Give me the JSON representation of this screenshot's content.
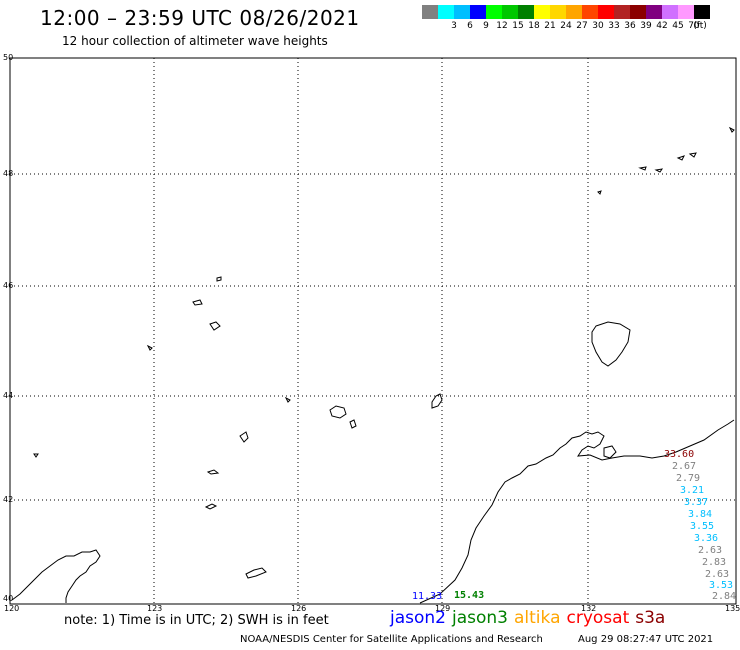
{
  "header": {
    "title": "12:00 – 23:59 UTC 08/26/2021",
    "subtitle": "12 hour collection of altimeter wave heights"
  },
  "legend": {
    "unit": "(ft)",
    "bins": [
      {
        "label": "",
        "color": "#808080"
      },
      {
        "label": "3",
        "color": "#00ffff"
      },
      {
        "label": "6",
        "color": "#00bfff"
      },
      {
        "label": "9",
        "color": "#0000ff"
      },
      {
        "label": "12",
        "color": "#00ff00"
      },
      {
        "label": "15",
        "color": "#00c800"
      },
      {
        "label": "18",
        "color": "#008000"
      },
      {
        "label": "21",
        "color": "#ffff00"
      },
      {
        "label": "24",
        "color": "#ffd700"
      },
      {
        "label": "27",
        "color": "#ffa500"
      },
      {
        "label": "30",
        "color": "#ff4500"
      },
      {
        "label": "33",
        "color": "#ff0000"
      },
      {
        "label": "36",
        "color": "#b22222"
      },
      {
        "label": "39",
        "color": "#8b0000"
      },
      {
        "label": "42",
        "color": "#800080"
      },
      {
        "label": "45",
        "color": "#d070ff"
      },
      {
        "label": "70",
        "color": "#ff99ff"
      },
      {
        "label": "",
        "color": "#000000"
      }
    ]
  },
  "map": {
    "lat_labels": [
      "50",
      "48",
      "46",
      "44",
      "42",
      "40"
    ],
    "lon_labels": [
      "120",
      "123",
      "126",
      "129",
      "132",
      "135"
    ],
    "grid": "dotted",
    "wave_labels": [
      {
        "text": "33.60",
        "color": "#8b0000"
      },
      {
        "text": "2.67",
        "color": "#808080"
      },
      {
        "text": "2.79",
        "color": "#808080"
      },
      {
        "text": "3.21",
        "color": "#00bfff"
      },
      {
        "text": "3.37",
        "color": "#00bfff"
      },
      {
        "text": "3.84",
        "color": "#00bfff"
      },
      {
        "text": "3.55",
        "color": "#00bfff"
      },
      {
        "text": "3.36",
        "color": "#00bfff"
      },
      {
        "text": "2.63",
        "color": "#808080"
      },
      {
        "text": "2.83",
        "color": "#808080"
      },
      {
        "text": "2.63",
        "color": "#808080"
      },
      {
        "text": "3.53",
        "color": "#00bfff"
      },
      {
        "text": "2.84",
        "color": "#808080"
      },
      {
        "text": "11.33",
        "color": "#0000ff"
      },
      {
        "text": "15.43",
        "color": "#008000"
      }
    ]
  },
  "footer": {
    "note": "note: 1) Time is in UTC; 2) SWH is in feet",
    "satellites": [
      {
        "name": "jason2",
        "color": "#0000ff"
      },
      {
        "name": "jason3",
        "color": "#008000"
      },
      {
        "name": "altika",
        "color": "#ffa500"
      },
      {
        "name": "cryosat",
        "color": "#ff0000"
      },
      {
        "name": "s3a",
        "color": "#8b0000"
      }
    ],
    "credit": "NOAA/NESDIS Center for Satellite Applications and Research",
    "timestamp": "Aug 29 08:27:47 UTC 2021"
  }
}
